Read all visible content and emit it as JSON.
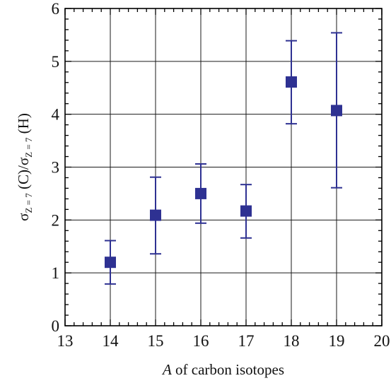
{
  "chart_data": {
    "type": "scatter",
    "title": "",
    "xlabel": {
      "italic_part": "A",
      "rest": " of carbon isotopes"
    },
    "ylabel": {
      "sigma1": "σ",
      "sub1": "Z = 7",
      "mid": " (C)/",
      "sigma2": "σ",
      "sub2": "Z = 7",
      "end": " (H)"
    },
    "xlim": [
      13,
      20
    ],
    "ylim": [
      0,
      6
    ],
    "x_ticks": [
      13,
      14,
      15,
      16,
      17,
      18,
      19,
      20
    ],
    "y_ticks": [
      0,
      1,
      2,
      3,
      4,
      5,
      6
    ],
    "x_tick_labels": [
      "13",
      "14",
      "15",
      "16",
      "17",
      "18",
      "19",
      "20"
    ],
    "y_tick_labels": [
      "0",
      "1",
      "2",
      "3",
      "4",
      "5",
      "6"
    ],
    "grid": true,
    "marker": "square",
    "color": "#2e3192",
    "points": [
      {
        "x": 14,
        "y": 1.2,
        "err_low": 0.79,
        "err_high": 1.61
      },
      {
        "x": 15,
        "y": 2.09,
        "err_low": 1.36,
        "err_high": 2.81
      },
      {
        "x": 16,
        "y": 2.5,
        "err_low": 1.94,
        "err_high": 3.06
      },
      {
        "x": 17,
        "y": 2.17,
        "err_low": 1.66,
        "err_high": 2.67
      },
      {
        "x": 18,
        "y": 4.61,
        "err_low": 3.82,
        "err_high": 5.39
      },
      {
        "x": 19,
        "y": 4.07,
        "err_low": 2.61,
        "err_high": 5.54
      }
    ]
  }
}
